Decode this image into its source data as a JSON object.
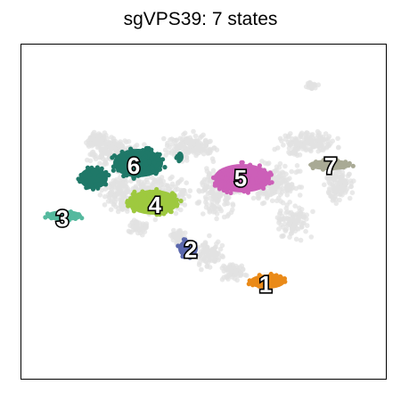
{
  "title": "sgVPS39: 7 states",
  "chart_data": {
    "type": "scatter",
    "title": "sgVPS39: 7 states",
    "xlabel": "",
    "ylabel": "",
    "axes_ticks": false,
    "grid": false,
    "legend": "none",
    "background_color": "#e2e2e2",
    "states": [
      {
        "label": "1",
        "color": "#ea8a18",
        "center": [
          300,
          316
        ],
        "label_pos": [
          298,
          319
        ]
      },
      {
        "label": "2",
        "color": "#5b68ad",
        "center": [
          211,
          279
        ],
        "label_pos": [
          214,
          280
        ]
      },
      {
        "label": "3",
        "color": "#55b99e",
        "center": [
          72,
          242
        ],
        "label_pos": [
          70,
          245
        ]
      },
      {
        "label": "4",
        "color": "#9ec93f",
        "center": [
          172,
          227
        ],
        "label_pos": [
          174,
          230
        ]
      },
      {
        "label": "5",
        "color": "#cc5fb8",
        "center": [
          272,
          200
        ],
        "label_pos": [
          270,
          200
        ]
      },
      {
        "label": "6",
        "color": "#1f7868",
        "center": [
          155,
          188
        ],
        "label_pos": [
          150,
          186
        ]
      },
      {
        "label": "7",
        "color": "#a9aa95",
        "center": [
          370,
          185
        ],
        "label_pos": [
          371,
          186
        ]
      }
    ]
  }
}
